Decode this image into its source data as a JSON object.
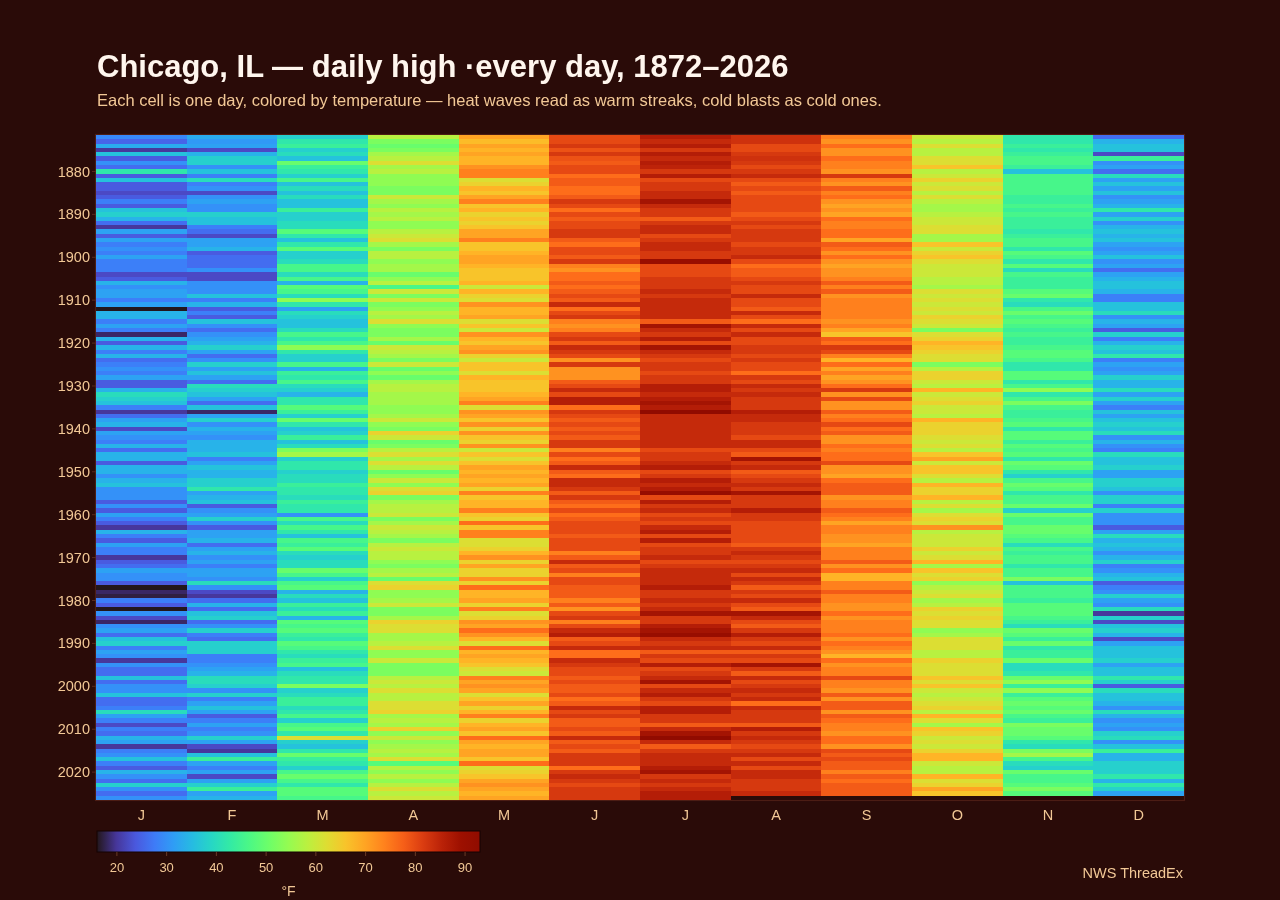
{
  "chart_data": {
    "type": "heatmap",
    "title": "Chicago, IL — daily high ·every day, 1872–2026",
    "subtitle": "Each cell is one day, colored by temperature — heat waves read as warm streaks, cold blasts as cold ones.",
    "categories": [
      "J",
      "F",
      "M",
      "A",
      "M",
      "J",
      "J",
      "A",
      "S",
      "O",
      "N",
      "D"
    ],
    "y_categories": [
      null,
      null,
      null,
      null,
      null,
      null,
      null,
      null,
      "1880",
      null,
      null,
      null,
      null,
      null,
      null,
      null,
      null,
      null,
      "1890",
      null,
      null,
      null,
      null,
      null,
      null,
      null,
      null,
      null,
      "1900",
      null,
      null,
      null,
      null,
      null,
      null,
      null,
      null,
      null,
      "1910",
      null,
      null,
      null,
      null,
      null,
      null,
      null,
      null,
      null,
      "1920",
      null,
      null,
      null,
      null,
      null,
      null,
      null,
      null,
      null,
      "1930",
      null,
      null,
      null,
      null,
      null,
      null,
      null,
      null,
      null,
      "1940",
      null,
      null,
      null,
      null,
      null,
      null,
      null,
      null,
      null,
      "1950",
      null,
      null,
      null,
      null,
      null,
      null,
      null,
      null,
      null,
      "1960",
      null,
      null,
      null,
      null,
      null,
      null,
      null,
      null,
      null,
      "1970",
      null,
      null,
      null,
      null,
      null,
      null,
      null,
      null,
      null,
      "1980",
      null,
      null,
      null,
      null,
      null,
      null,
      null,
      null,
      null,
      "1990",
      null,
      null,
      null,
      null,
      null,
      null,
      null,
      null,
      null,
      "2000",
      null,
      null,
      null,
      null,
      null,
      null,
      null,
      null,
      null,
      "2010",
      null,
      null,
      null,
      null,
      null,
      null,
      null,
      null,
      null,
      "2020",
      null,
      null,
      null,
      null,
      null,
      null
    ],
    "cells": [
      [
        29,
        33,
        38,
        58,
        70,
        80,
        86,
        83,
        74,
        60,
        42,
        26
      ],
      [
        25,
        31,
        42,
        52,
        67,
        80,
        84,
        83,
        72,
        58,
        42,
        34
      ],
      [
        33,
        32,
        44,
        50,
        70,
        82,
        86,
        80,
        76,
        62,
        44,
        36
      ],
      [
        20,
        22,
        38,
        52,
        68,
        79,
        82,
        80,
        72,
        58,
        42,
        36
      ],
      [
        36,
        34,
        40,
        56,
        70,
        82,
        86,
        82,
        72,
        58,
        44,
        22
      ],
      [
        24,
        38,
        36,
        58,
        68,
        79,
        84,
        83,
        76,
        62,
        46,
        44
      ],
      [
        30,
        38,
        50,
        62,
        68,
        78,
        86,
        82,
        74,
        62,
        46,
        30
      ],
      [
        26,
        30,
        44,
        56,
        72,
        80,
        85,
        80,
        74,
        66,
        44,
        32
      ],
      [
        42,
        36,
        42,
        58,
        74,
        80,
        82,
        82,
        72,
        58,
        36,
        26
      ],
      [
        24,
        28,
        38,
        54,
        74,
        76,
        86,
        84,
        82,
        60,
        46,
        40
      ],
      [
        36,
        40,
        46,
        54,
        62,
        78,
        80,
        80,
        74,
        64,
        46,
        32
      ],
      [
        24,
        28,
        36,
        54,
        64,
        78,
        82,
        78,
        72,
        60,
        46,
        36
      ],
      [
        24,
        30,
        40,
        52,
        68,
        76,
        82,
        80,
        78,
        62,
        46,
        32
      ],
      [
        22,
        22,
        36,
        52,
        66,
        76,
        84,
        78,
        74,
        58,
        46,
        36
      ],
      [
        24,
        30,
        40,
        60,
        70,
        78,
        84,
        80,
        76,
        62,
        44,
        30
      ],
      [
        28,
        32,
        36,
        56,
        74,
        82,
        88,
        80,
        72,
        58,
        44,
        32
      ],
      [
        24,
        30,
        36,
        54,
        66,
        80,
        84,
        80,
        70,
        56,
        46,
        34
      ],
      [
        36,
        30,
        44,
        58,
        68,
        76,
        82,
        80,
        72,
        56,
        44,
        42
      ],
      [
        38,
        38,
        38,
        56,
        64,
        80,
        82,
        78,
        70,
        58,
        46,
        32
      ],
      [
        34,
        36,
        38,
        58,
        66,
        78,
        78,
        80,
        76,
        60,
        44,
        38
      ],
      [
        26,
        36,
        40,
        54,
        64,
        80,
        82,
        82,
        74,
        60,
        44,
        30
      ],
      [
        20,
        28,
        40,
        54,
        66,
        80,
        84,
        80,
        74,
        62,
        44,
        34
      ],
      [
        32,
        26,
        48,
        58,
        70,
        82,
        84,
        82,
        76,
        62,
        42,
        36
      ],
      [
        24,
        22,
        42,
        60,
        70,
        82,
        80,
        82,
        76,
        56,
        44,
        34
      ],
      [
        32,
        32,
        36,
        62,
        74,
        78,
        82,
        82,
        70,
        56,
        46,
        36
      ],
      [
        28,
        32,
        42,
        56,
        66,
        76,
        84,
        80,
        78,
        66,
        46,
        32
      ],
      [
        30,
        34,
        48,
        52,
        66,
        80,
        84,
        82,
        76,
        60,
        42,
        30
      ],
      [
        28,
        24,
        38,
        58,
        68,
        80,
        82,
        82,
        72,
        64,
        48,
        32
      ],
      [
        32,
        26,
        38,
        58,
        70,
        78,
        82,
        84,
        76,
        66,
        46,
        36
      ],
      [
        28,
        26,
        40,
        54,
        70,
        82,
        90,
        80,
        72,
        62,
        42,
        30
      ],
      [
        28,
        26,
        46,
        56,
        68,
        74,
        80,
        76,
        70,
        60,
        48,
        32
      ],
      [
        28,
        30,
        46,
        56,
        66,
        72,
        80,
        78,
        72,
        60,
        40,
        26
      ],
      [
        22,
        22,
        40,
        50,
        66,
        76,
        80,
        78,
        72,
        60,
        46,
        32
      ],
      [
        24,
        22,
        46,
        54,
        66,
        76,
        82,
        80,
        74,
        58,
        44,
        34
      ],
      [
        34,
        30,
        34,
        58,
        68,
        78,
        82,
        82,
        78,
        58,
        44,
        36
      ],
      [
        30,
        30,
        48,
        46,
        60,
        76,
        82,
        80,
        74,
        56,
        44,
        36
      ],
      [
        32,
        30,
        46,
        60,
        68,
        78,
        84,
        80,
        78,
        62,
        48,
        34
      ],
      [
        32,
        36,
        40,
        52,
        64,
        80,
        82,
        84,
        72,
        60,
        50,
        28
      ],
      [
        28,
        28,
        54,
        60,
        62,
        78,
        84,
        80,
        74,
        62,
        42,
        28
      ],
      [
        32,
        34,
        42,
        52,
        72,
        84,
        84,
        80,
        74,
        60,
        40,
        36
      ],
      [
        16,
        24,
        32,
        54,
        68,
        76,
        84,
        78,
        74,
        62,
        46,
        36
      ],
      [
        34,
        28,
        40,
        58,
        68,
        80,
        84,
        84,
        74,
        60,
        50,
        40
      ],
      [
        34,
        24,
        38,
        56,
        70,
        82,
        84,
        80,
        74,
        64,
        46,
        30
      ],
      [
        28,
        36,
        36,
        62,
        62,
        74,
        78,
        76,
        72,
        62,
        48,
        34
      ],
      [
        32,
        30,
        36,
        54,
        66,
        72,
        88,
        84,
        74,
        60,
        46,
        32
      ],
      [
        28,
        26,
        40,
        52,
        60,
        74,
        84,
        80,
        70,
        52,
        44,
        24
      ],
      [
        18,
        30,
        46,
        52,
        72,
        80,
        82,
        84,
        66,
        62,
        46,
        38
      ],
      [
        34,
        32,
        42,
        56,
        68,
        82,
        86,
        80,
        78,
        64,
        44,
        28
      ],
      [
        24,
        34,
        46,
        50,
        66,
        78,
        80,
        80,
        76,
        68,
        44,
        34
      ],
      [
        34,
        38,
        54,
        60,
        70,
        84,
        88,
        82,
        82,
        66,
        46,
        38
      ],
      [
        28,
        32,
        42,
        58,
        72,
        82,
        84,
        82,
        80,
        64,
        48,
        36
      ],
      [
        34,
        26,
        38,
        56,
        64,
        80,
        82,
        80,
        74,
        62,
        48,
        42
      ],
      [
        26,
        30,
        38,
        52,
        60,
        72,
        80,
        82,
        68,
        62,
        46,
        28
      ],
      [
        28,
        38,
        46,
        60,
        66,
        82,
        82,
        80,
        76,
        52,
        42,
        32
      ],
      [
        30,
        32,
        34,
        50,
        66,
        72,
        82,
        80,
        70,
        58,
        42,
        30
      ],
      [
        28,
        36,
        44,
        54,
        62,
        72,
        80,
        76,
        74,
        64,
        48,
        32
      ],
      [
        32,
        32,
        42,
        50,
        68,
        72,
        82,
        82,
        70,
        64,
        48,
        38
      ],
      [
        24,
        26,
        46,
        56,
        66,
        78,
        82,
        80,
        72,
        60,
        42,
        34
      ],
      [
        24,
        40,
        40,
        58,
        66,
        80,
        86,
        84,
        76,
        58,
        46,
        34
      ],
      [
        34,
        38,
        38,
        58,
        66,
        84,
        86,
        82,
        82,
        68,
        54,
        40
      ],
      [
        40,
        36,
        34,
        56,
        68,
        80,
        84,
        84,
        72,
        60,
        42,
        32
      ],
      [
        38,
        32,
        42,
        56,
        70,
        86,
        86,
        82,
        80,
        62,
        46,
        38
      ],
      [
        36,
        26,
        42,
        56,
        74,
        86,
        88,
        82,
        72,
        64,
        52,
        32
      ],
      [
        28,
        36,
        48,
        54,
        62,
        76,
        86,
        82,
        72,
        60,
        46,
        28
      ],
      [
        20,
        18,
        44,
        54,
        72,
        82,
        92,
        86,
        78,
        60,
        44,
        36
      ],
      [
        26,
        32,
        38,
        56,
        70,
        80,
        84,
        84,
        74,
        58,
        44,
        32
      ],
      [
        32,
        38,
        50,
        60,
        66,
        78,
        84,
        84,
        76,
        68,
        46,
        36
      ],
      [
        34,
        30,
        42,
        54,
        72,
        80,
        84,
        82,
        80,
        64,
        48,
        38
      ],
      [
        22,
        34,
        36,
        52,
        64,
        78,
        84,
        82,
        76,
        64,
        42,
        36
      ],
      [
        32,
        32,
        38,
        64,
        72,
        80,
        84,
        82,
        78,
        64,
        48,
        40
      ],
      [
        30,
        30,
        44,
        60,
        66,
        78,
        84,
        80,
        72,
        62,
        48,
        30
      ],
      [
        28,
        34,
        36,
        50,
        64,
        82,
        84,
        84,
        72,
        60,
        44,
        34
      ],
      [
        34,
        34,
        40,
        52,
        72,
        82,
        84,
        84,
        76,
        62,
        48,
        30
      ],
      [
        26,
        34,
        52,
        58,
        60,
        74,
        80,
        80,
        74,
        58,
        46,
        28
      ],
      [
        34,
        36,
        56,
        62,
        66,
        80,
        82,
        78,
        76,
        66,
        48,
        40
      ],
      [
        34,
        28,
        38,
        56,
        62,
        76,
        82,
        88,
        76,
        70,
        42,
        36
      ],
      [
        24,
        32,
        42,
        62,
        66,
        78,
        84,
        82,
        80,
        60,
        50,
        36
      ],
      [
        34,
        36,
        42,
        58,
        70,
        84,
        86,
        84,
        72,
        66,
        48,
        38
      ],
      [
        34,
        34,
        38,
        50,
        68,
        78,
        80,
        78,
        72,
        66,
        42,
        32
      ],
      [
        30,
        34,
        40,
        54,
        70,
        76,
        82,
        80,
        70,
        62,
        38,
        32
      ],
      [
        34,
        38,
        40,
        60,
        68,
        84,
        86,
        82,
        76,
        58,
        46,
        38
      ],
      [
        36,
        38,
        44,
        54,
        70,
        84,
        84,
        84,
        78,
        68,
        50,
        38
      ],
      [
        30,
        42,
        42,
        62,
        64,
        82,
        86,
        82,
        78,
        64,
        48,
        36
      ],
      [
        30,
        32,
        42,
        64,
        74,
        78,
        90,
        88,
        78,
        64,
        42,
        30
      ],
      [
        30,
        34,
        40,
        52,
        66,
        82,
        80,
        82,
        72,
        68,
        46,
        38
      ],
      [
        24,
        36,
        44,
        56,
        68,
        78,
        86,
        82,
        74,
        58,
        46,
        38
      ],
      [
        30,
        24,
        42,
        58,
        68,
        76,
        82,
        82,
        74,
        62,
        50,
        28
      ],
      [
        24,
        30,
        42,
        58,
        74,
        80,
        84,
        86,
        78,
        56,
        38,
        38
      ],
      [
        32,
        32,
        30,
        60,
        66,
        76,
        80,
        82,
        76,
        62,
        50,
        30
      ],
      [
        28,
        38,
        46,
        52,
        64,
        78,
        82,
        82,
        74,
        64,
        46,
        30
      ],
      [
        24,
        30,
        40,
        56,
        76,
        80,
        80,
        80,
        70,
        62,
        46,
        30
      ],
      [
        20,
        24,
        46,
        60,
        66,
        80,
        84,
        80,
        74,
        72,
        50,
        24
      ],
      [
        34,
        32,
        42,
        58,
        74,
        80,
        86,
        80,
        74,
        58,
        50,
        32
      ],
      [
        28,
        32,
        36,
        56,
        74,
        78,
        80,
        80,
        72,
        60,
        48,
        40
      ],
      [
        24,
        34,
        46,
        52,
        62,
        80,
        86,
        80,
        72,
        60,
        46,
        34
      ],
      [
        32,
        26,
        44,
        58,
        62,
        80,
        80,
        78,
        70,
        60,
        40,
        36
      ],
      [
        28,
        32,
        48,
        60,
        64,
        80,
        82,
        82,
        74,
        64,
        46,
        34
      ],
      [
        28,
        34,
        40,
        58,
        68,
        74,
        82,
        84,
        74,
        60,
        44,
        30
      ],
      [
        20,
        30,
        38,
        58,
        72,
        78,
        84,
        82,
        74,
        62,
        46,
        34
      ],
      [
        24,
        32,
        40,
        54,
        64,
        84,
        80,
        80,
        78,
        68,
        46,
        38
      ],
      [
        26,
        28,
        40,
        52,
        70,
        78,
        82,
        82,
        72,
        56,
        42,
        28
      ],
      [
        32,
        32,
        50,
        56,
        64,
        80,
        84,
        84,
        76,
        66,
        46,
        30
      ],
      [
        30,
        32,
        46,
        58,
        64,
        74,
        84,
        80,
        68,
        62,
        46,
        34
      ],
      [
        30,
        30,
        38,
        50,
        72,
        80,
        84,
        84,
        68,
        64,
        52,
        36
      ],
      [
        24,
        40,
        46,
        62,
        64,
        80,
        84,
        82,
        74,
        54,
        36,
        24
      ],
      [
        16,
        30,
        48,
        64,
        76,
        78,
        86,
        78,
        74,
        58,
        46,
        28
      ],
      [
        18,
        22,
        34,
        54,
        68,
        78,
        82,
        82,
        78,
        60,
        46,
        30
      ],
      [
        17,
        20,
        40,
        54,
        68,
        78,
        82,
        80,
        74,
        62,
        46,
        38
      ],
      [
        28,
        26,
        36,
        56,
        70,
        74,
        84,
        84,
        74,
        56,
        44,
        32
      ],
      [
        24,
        34,
        44,
        60,
        64,
        78,
        82,
        80,
        72,
        58,
        48,
        30
      ],
      [
        16,
        26,
        40,
        52,
        74,
        72,
        84,
        78,
        72,
        64,
        48,
        40
      ],
      [
        30,
        36,
        44,
        52,
        62,
        80,
        88,
        88,
        76,
        62,
        48,
        20
      ],
      [
        22,
        38,
        34,
        56,
        64,
        82,
        82,
        84,
        72,
        64,
        46,
        38
      ],
      [
        18,
        26,
        48,
        64,
        72,
        74,
        82,
        80,
        74,
        62,
        44,
        22
      ],
      [
        30,
        30,
        46,
        62,
        70,
        80,
        86,
        78,
        74,
        62,
        40,
        36
      ],
      [
        32,
        38,
        48,
        62,
        76,
        84,
        88,
        82,
        74,
        54,
        50,
        38
      ],
      [
        26,
        28,
        44,
        56,
        72,
        86,
        90,
        86,
        76,
        56,
        48,
        34
      ],
      [
        36,
        26,
        42,
        56,
        68,
        78,
        84,
        82,
        72,
        62,
        44,
        22
      ],
      [
        38,
        38,
        48,
        58,
        62,
        80,
        82,
        80,
        76,
        62,
        50,
        32
      ],
      [
        28,
        38,
        46,
        62,
        76,
        84,
        84,
        84,
        74,
        62,
        42,
        36
      ],
      [
        32,
        38,
        42,
        54,
        68,
        76,
        78,
        78,
        72,
        58,
        44,
        36
      ],
      [
        30,
        28,
        40,
        54,
        70,
        76,
        82,
        82,
        68,
        58,
        44,
        36
      ],
      [
        20,
        28,
        44,
        60,
        68,
        84,
        80,
        80,
        76,
        64,
        50,
        38
      ],
      [
        30,
        30,
        46,
        52,
        66,
        82,
        86,
        88,
        72,
        62,
        40,
        32
      ],
      [
        26,
        32,
        36,
        52,
        62,
        80,
        80,
        82,
        74,
        62,
        40,
        36
      ],
      [
        26,
        34,
        40,
        52,
        60,
        80,
        82,
        78,
        74,
        62,
        42,
        36
      ],
      [
        36,
        40,
        42,
        58,
        74,
        78,
        84,
        84,
        80,
        66,
        50,
        42
      ],
      [
        26,
        40,
        42,
        60,
        70,
        80,
        88,
        80,
        74,
        62,
        54,
        38
      ],
      [
        30,
        38,
        52,
        58,
        72,
        78,
        80,
        82,
        74,
        66,
        44,
        24
      ],
      [
        30,
        30,
        38,
        62,
        70,
        78,
        84,
        84,
        72,
        60,
        54,
        40
      ],
      [
        36,
        38,
        40,
        58,
        62,
        80,
        86,
        82,
        78,
        58,
        44,
        36
      ],
      [
        26,
        28,
        44,
        58,
        66,
        76,
        82,
        84,
        72,
        60,
        48,
        36
      ],
      [
        26,
        32,
        44,
        62,
        70,
        78,
        80,
        76,
        78,
        62,
        50,
        34
      ],
      [
        28,
        36,
        40,
        62,
        64,
        84,
        86,
        84,
        78,
        64,
        48,
        30
      ],
      [
        40,
        32,
        42,
        64,
        68,
        80,
        86,
        82,
        72,
        58,
        50,
        40
      ],
      [
        32,
        24,
        46,
        56,
        74,
        82,
        82,
        82,
        78,
        68,
        46,
        34
      ],
      [
        28,
        28,
        38,
        58,
        64,
        78,
        82,
        82,
        76,
        62,
        44,
        30
      ],
      [
        22,
        32,
        46,
        56,
        68,
        78,
        78,
        78,
        74,
        56,
        52,
        32
      ],
      [
        28,
        28,
        48,
        64,
        70,
        80,
        84,
        86,
        74,
        66,
        50,
        30
      ],
      [
        26,
        30,
        42,
        54,
        66,
        78,
        88,
        82,
        72,
        64,
        50,
        38
      ],
      [
        34,
        38,
        62,
        60,
        76,
        84,
        92,
        84,
        76,
        60,
        48,
        40
      ],
      [
        32,
        32,
        38,
        54,
        70,
        78,
        84,
        82,
        76,
        62,
        42,
        30
      ],
      [
        20,
        22,
        36,
        56,
        68,
        80,
        78,
        80,
        72,
        60,
        40,
        36
      ],
      [
        28,
        20,
        42,
        58,
        70,
        78,
        82,
        82,
        80,
        64,
        52,
        44
      ],
      [
        30,
        36,
        50,
        56,
        70,
        82,
        84,
        84,
        78,
        68,
        56,
        34
      ],
      [
        36,
        44,
        44,
        62,
        66,
        82,
        84,
        80,
        80,
        68,
        46,
        34
      ],
      [
        28,
        32,
        42,
        48,
        76,
        82,
        84,
        84,
        78,
        60,
        40,
        38
      ],
      [
        24,
        28,
        38,
        58,
        62,
        76,
        86,
        80,
        78,
        58,
        38,
        38
      ],
      [
        34,
        32,
        46,
        54,
        64,
        82,
        88,
        84,
        74,
        58,
        50,
        38
      ],
      [
        30,
        22,
        50,
        58,
        66,
        84,
        82,
        84,
        78,
        68,
        46,
        42
      ],
      [
        26,
        32,
        46,
        54,
        70,
        82,
        84,
        82,
        76,
        62,
        46,
        34
      ],
      [
        38,
        38,
        42,
        58,
        72,
        80,
        82,
        82,
        78,
        64,
        48,
        42
      ],
      [
        30,
        44,
        48,
        62,
        70,
        82,
        84,
        82,
        78,
        70,
        52,
        38
      ],
      [
        26,
        32,
        48,
        58,
        68,
        82,
        86,
        84,
        78,
        66,
        48,
        32
      ],
      [
        30,
        34,
        46,
        60,
        70,
        82,
        86,
        null,
        null,
        null,
        null,
        null
      ]
    ],
    "clim": [
      16,
      93
    ],
    "cticks": [
      20,
      30,
      40,
      50,
      60,
      70,
      80,
      90
    ],
    "clabel": "°F",
    "annotations": [
      "NWS ThreadEx"
    ]
  }
}
